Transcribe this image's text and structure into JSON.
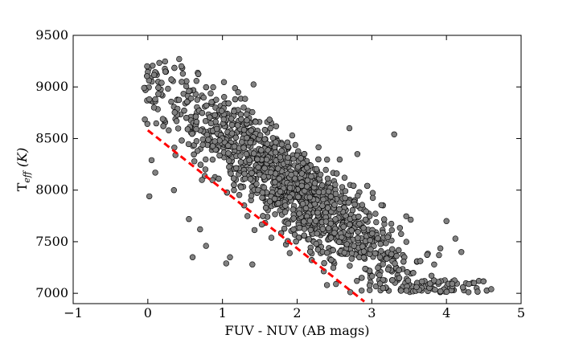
{
  "chart_data": {
    "type": "scatter",
    "title": "",
    "xlabel": "FUV - NUV (AB mags)",
    "ylabel_main": "T",
    "ylabel_sub": "eff",
    "ylabel_unit": " (K)",
    "xlim": [
      -1,
      5
    ],
    "ylim": [
      6900,
      9500
    ],
    "xticks": [
      -1,
      0,
      1,
      2,
      3,
      4,
      5
    ],
    "xtick_labels": [
      "−1",
      "0",
      "1",
      "2",
      "3",
      "4",
      "5"
    ],
    "yticks": [
      7000,
      7500,
      8000,
      8500,
      9000,
      9500
    ],
    "ytick_labels": [
      "7000",
      "7500",
      "8000",
      "8500",
      "9000",
      "9500"
    ],
    "grid": false,
    "legend": "none",
    "marker_fill": "#808080",
    "marker_edge": "#000000",
    "fit_line": {
      "x": [
        0,
        2.9
      ],
      "y": [
        8580,
        6920
      ],
      "color": "#ff0000",
      "style": "dashed"
    },
    "cloud": {
      "n_points": 1700,
      "trend_y_at_x0": 9050,
      "trend_slope": -530,
      "trend_scatter": 230,
      "x_range": [
        -0.05,
        4.6
      ]
    },
    "series": [
      {
        "name": "",
        "x": [
          -0.05,
          0.02,
          0.1,
          0.42,
          0.45,
          0.2,
          0.28,
          0.55,
          0.37,
          0.1,
          0.05,
          0.02,
          0.35,
          0.55,
          0.7,
          0.78,
          1.05,
          1.1,
          1.4,
          0.6,
          2.4,
          2.8,
          3.15,
          3.6,
          3.8,
          4.0,
          4.12,
          4.2,
          4.3,
          4.37,
          4.6,
          3.9,
          3.3,
          2.7
        ],
        "y": [
          8990,
          8880,
          8880,
          9270,
          9200,
          8690,
          8580,
          8960,
          8340,
          8170,
          8290,
          7940,
          8000,
          7720,
          7620,
          7460,
          7290,
          7350,
          7280,
          7350,
          7080,
          7120,
          7050,
          7060,
          7170,
          7700,
          7530,
          7400,
          7090,
          7100,
          7040,
          7370,
          8540,
          8600
        ]
      }
    ]
  }
}
